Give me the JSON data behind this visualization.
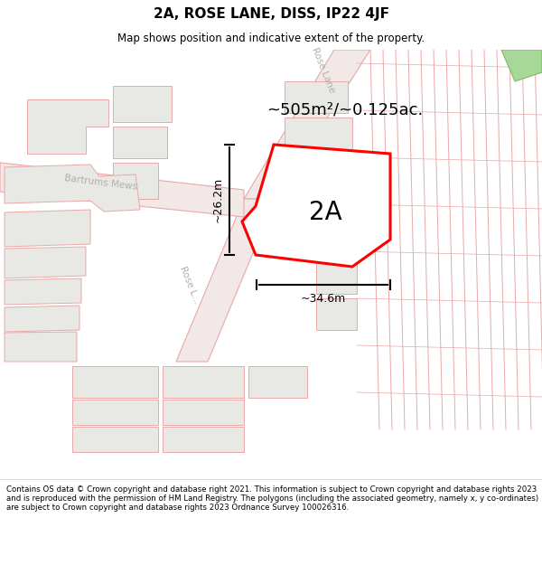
{
  "title": "2A, ROSE LANE, DISS, IP22 4JF",
  "subtitle": "Map shows position and indicative extent of the property.",
  "footer": "Contains OS data © Crown copyright and database right 2021. This information is subject to Crown copyright and database rights 2023 and is reproduced with the permission of HM Land Registry. The polygons (including the associated geometry, namely x, y co-ordinates) are subject to Crown copyright and database rights 2023 Ordnance Survey 100026316.",
  "area_text": "~505m²/~0.125ac.",
  "label_2A": "2A",
  "dim_width": "~34.6m",
  "dim_height": "~26.2m",
  "road_label_top": "Rose Lane",
  "road_label_bartrums": "Bartrums Mews",
  "road_label_left": "Rose L...",
  "green_strip_color": "#a8d898",
  "road_fc": "#f2e8e8",
  "road_ec": "#e8a8a8",
  "bldg_fc": "#e8e8e4",
  "bldg_ec": "#e8a8a8",
  "plot_red": "#ff0000",
  "text_gray": "#b0b0b0",
  "title_fontsize": 11,
  "subtitle_fontsize": 8.5,
  "footer_fontsize": 6.2
}
